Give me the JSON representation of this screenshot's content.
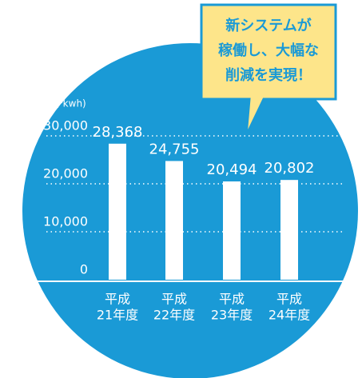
{
  "chart_data": {
    "type": "bar",
    "ylabel": "(千kwh)",
    "categories": [
      [
        "平成",
        "21年度"
      ],
      [
        "平成",
        "22年度"
      ],
      [
        "平成",
        "23年度"
      ],
      [
        "平成",
        "24年度"
      ]
    ],
    "values": [
      28368,
      24755,
      20494,
      20802
    ],
    "value_labels": [
      "28,368",
      "24,755",
      "20,494",
      "20,802"
    ],
    "color": "#ffffff",
    "ylim": [
      0,
      30000
    ],
    "yticks": [
      0,
      {
        "value": 10000,
        "label": "10,000"
      },
      {
        "value": 20000,
        "label": "20,000"
      },
      {
        "value": 30000,
        "label": "30,000"
      }
    ],
    "grid": true,
    "annotation": [
      "新システムが",
      "稼働し、大幅な",
      "削減を実現！"
    ]
  }
}
